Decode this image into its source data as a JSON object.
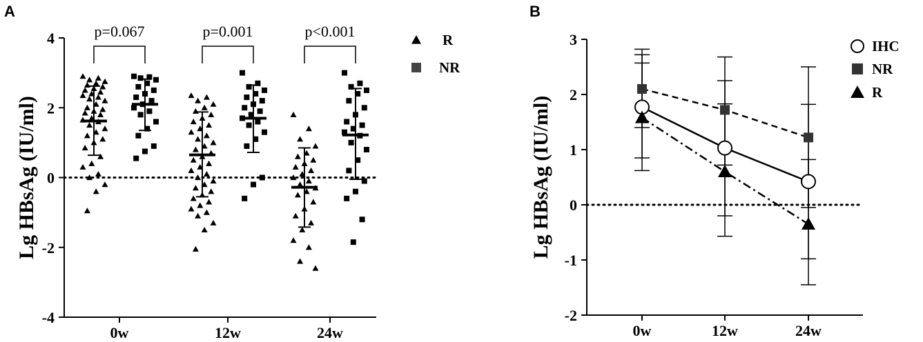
{
  "chart_data": [
    {
      "panel": "A",
      "type": "scatter",
      "ylabel": "Lg HBsAg (IU/ml)",
      "ylim": [
        -4,
        4
      ],
      "yticks": [
        -4,
        -2,
        0,
        2,
        4
      ],
      "categories": [
        "0w",
        "12w",
        "24w"
      ],
      "reference_line": 0,
      "legend": [
        {
          "marker": "triangle",
          "label": "R"
        },
        {
          "marker": "square",
          "label": "NR"
        }
      ],
      "comparisons": [
        {
          "category": "0w",
          "label": "p=0.067"
        },
        {
          "category": "12w",
          "label": "p=0.001"
        },
        {
          "category": "24w",
          "label": "p<0.001"
        }
      ],
      "series": [
        {
          "name": "R",
          "marker": "triangle",
          "groups": [
            {
              "category": "0w",
              "mean": 1.62,
              "upper": 2.62,
              "lower": 0.64,
              "points": [
                2.9,
                2.85,
                2.8,
                2.75,
                2.7,
                2.65,
                2.6,
                2.55,
                2.5,
                2.45,
                2.4,
                2.35,
                2.3,
                2.25,
                2.2,
                2.1,
                2.0,
                1.95,
                1.9,
                1.85,
                1.8,
                1.7,
                1.65,
                1.6,
                1.5,
                1.4,
                1.3,
                1.2,
                1.1,
                1.0,
                0.85,
                0.6,
                0.4,
                0.3,
                0.1,
                0.0,
                -0.2,
                -0.4,
                -0.95
              ]
            },
            {
              "category": "12w",
              "mean": 0.65,
              "upper": 1.88,
              "lower": -0.55,
              "points": [
                2.35,
                2.3,
                2.2,
                2.1,
                2.0,
                1.9,
                1.8,
                1.7,
                1.6,
                1.5,
                1.4,
                1.3,
                1.2,
                1.1,
                1.0,
                0.9,
                0.8,
                0.7,
                0.6,
                0.5,
                0.4,
                0.3,
                0.2,
                0.1,
                0.0,
                -0.1,
                -0.2,
                -0.3,
                -0.4,
                -0.5,
                -0.6,
                -0.7,
                -0.8,
                -0.9,
                -1.0,
                -1.1,
                -1.3,
                -1.5,
                -2.05
              ]
            },
            {
              "category": "24w",
              "mean": -0.28,
              "upper": 0.85,
              "lower": -1.42,
              "points": [
                1.8,
                1.4,
                1.1,
                0.9,
                0.7,
                0.6,
                0.5,
                0.4,
                0.3,
                0.2,
                0.1,
                0.0,
                -0.1,
                -0.2,
                -0.3,
                -0.4,
                -0.5,
                -0.7,
                -0.9,
                -1.1,
                -1.3,
                -1.5,
                -1.8,
                -2.0,
                -2.4,
                -2.6
              ]
            }
          ]
        },
        {
          "name": "NR",
          "marker": "square",
          "groups": [
            {
              "category": "0w",
              "mean": 2.1,
              "upper": 2.82,
              "lower": 1.35,
              "points": [
                2.9,
                2.88,
                2.85,
                2.8,
                2.7,
                2.6,
                2.5,
                2.4,
                2.3,
                2.2,
                2.1,
                2.0,
                1.9,
                1.8,
                1.6,
                1.4,
                1.2,
                0.9,
                0.75,
                0.55
              ]
            },
            {
              "category": "12w",
              "mean": 1.7,
              "upper": 2.65,
              "lower": 0.72,
              "points": [
                3.0,
                2.7,
                2.6,
                2.5,
                2.4,
                2.3,
                2.2,
                2.1,
                2.0,
                1.9,
                1.8,
                1.7,
                1.6,
                1.5,
                1.3,
                1.1,
                0.9,
                0.0,
                -0.2,
                -0.6
              ]
            },
            {
              "category": "24w",
              "mean": 1.22,
              "upper": 2.55,
              "lower": -0.05,
              "points": [
                3.0,
                2.7,
                2.6,
                2.5,
                2.4,
                2.2,
                2.0,
                1.8,
                1.6,
                1.5,
                1.4,
                1.3,
                1.2,
                1.0,
                0.8,
                0.5,
                0.2,
                -0.1,
                -0.4,
                -0.6,
                -1.2,
                -1.85
              ]
            }
          ]
        }
      ]
    },
    {
      "panel": "B",
      "type": "line",
      "ylabel": "Lg HBsAg (IU/ml)",
      "ylim": [
        -2,
        3
      ],
      "yticks": [
        -2,
        -1,
        0,
        1,
        2,
        3
      ],
      "categories": [
        "0w",
        "12w",
        "24w"
      ],
      "reference_line": 0,
      "legend": [
        {
          "marker": "circle",
          "label": "IHC"
        },
        {
          "marker": "square",
          "label": "NR"
        },
        {
          "marker": "triangle",
          "label": "R"
        }
      ],
      "series": [
        {
          "name": "IHC",
          "marker": "circle",
          "line": "solid",
          "values": [
            1.77,
            1.03,
            0.42
          ],
          "upper": [
            2.57,
            1.83,
            0.82
          ],
          "lower": [
            0.62,
            -0.57,
            -0.98
          ]
        },
        {
          "name": "NR",
          "marker": "square",
          "line": "dashed",
          "values": [
            2.1,
            1.72,
            1.22
          ],
          "upper": [
            2.82,
            2.68,
            2.5
          ],
          "lower": [
            1.4,
            0.72,
            -0.05
          ]
        },
        {
          "name": "R",
          "marker": "triangle",
          "line": "dashdot",
          "values": [
            1.58,
            0.6,
            -0.35
          ],
          "upper": [
            2.72,
            2.25,
            1.82
          ],
          "lower": [
            0.85,
            -0.2,
            -1.45
          ]
        }
      ]
    }
  ]
}
